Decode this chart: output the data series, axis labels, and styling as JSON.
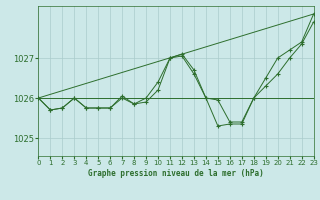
{
  "background_color": "#cce8e8",
  "grid_color": "#aacccc",
  "line_color": "#2d6e2d",
  "title": "Graphe pression niveau de la mer (hPa)",
  "xlim": [
    0,
    23
  ],
  "ylim": [
    1024.55,
    1028.3
  ],
  "yticks": [
    1025,
    1026,
    1027
  ],
  "xticks": [
    0,
    1,
    2,
    3,
    4,
    5,
    6,
    7,
    8,
    9,
    10,
    11,
    12,
    13,
    14,
    15,
    16,
    17,
    18,
    19,
    20,
    21,
    22,
    23
  ],
  "series1": [
    1026.0,
    1025.7,
    1025.75,
    1026.0,
    1025.75,
    1025.75,
    1025.75,
    1026.0,
    1025.85,
    1025.9,
    1026.2,
    1027.0,
    1027.05,
    1026.6,
    1026.0,
    1025.95,
    1025.4,
    1025.4,
    1026.0,
    1026.3,
    1026.6,
    1027.0,
    1027.35,
    1027.9
  ],
  "series2": [
    1026.0,
    1025.7,
    1025.75,
    1026.0,
    1025.75,
    1025.75,
    1025.75,
    1026.05,
    1025.85,
    1026.0,
    1026.4,
    1027.0,
    1027.1,
    1026.7,
    1026.0,
    1025.3,
    1025.35,
    1025.35,
    1026.0,
    1026.5,
    1027.0,
    1027.2,
    1027.4,
    1028.1
  ],
  "series3_x": [
    0,
    23
  ],
  "series3_y": [
    1026.0,
    1028.1
  ],
  "series4_x": [
    0,
    3,
    14,
    23
  ],
  "series4_y": [
    1026.0,
    1026.0,
    1026.0,
    1026.0
  ]
}
